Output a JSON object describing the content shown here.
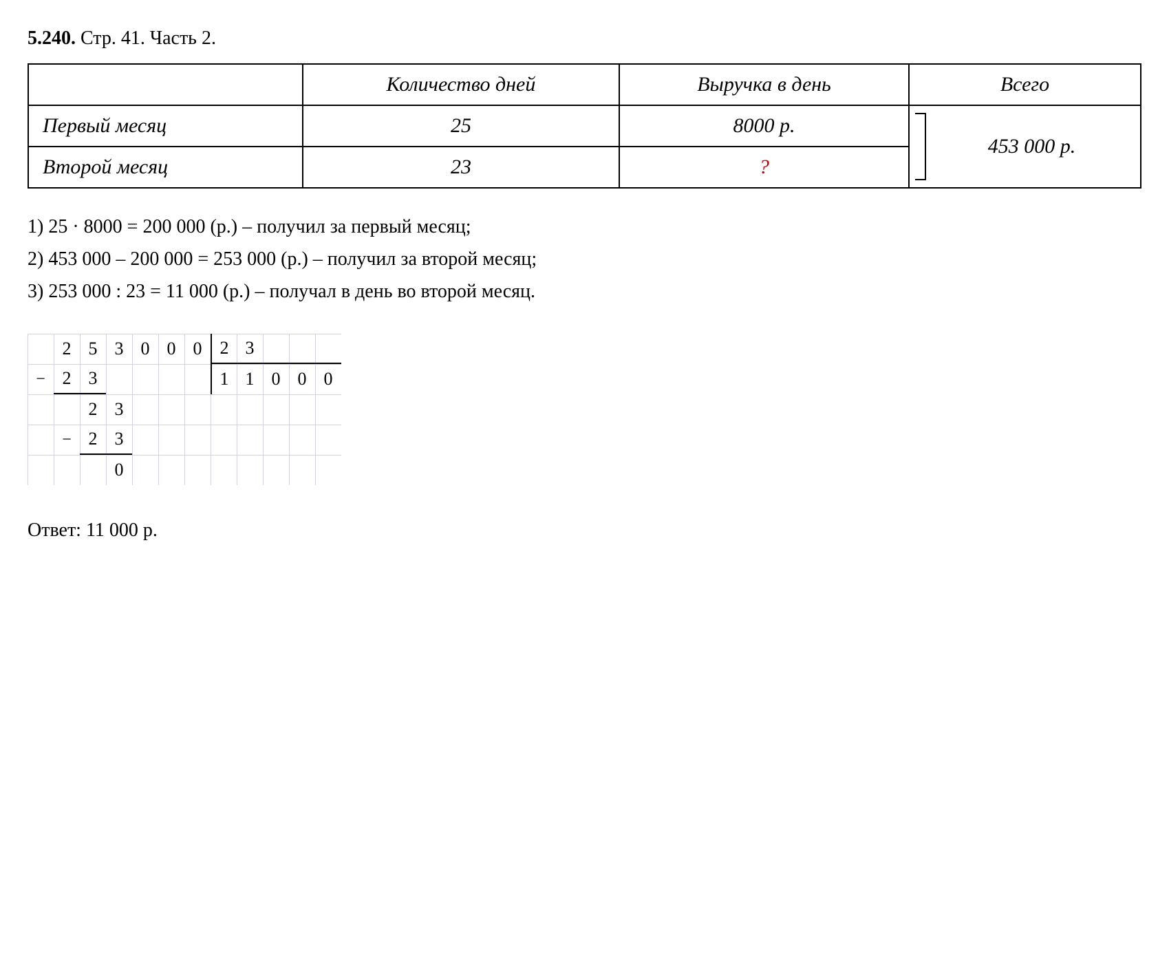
{
  "heading": {
    "number": "5.240.",
    "page": "Стр. 41.",
    "part": "Часть 2."
  },
  "table": {
    "headers": {
      "col1": "",
      "col2": "Количество дней",
      "col3": "Выручка в день",
      "col4": "Всего"
    },
    "rows": [
      {
        "label": "Первый месяц",
        "days": "25",
        "revenue": "8000 р.",
        "total": "453 000 р."
      },
      {
        "label": "Второй месяц",
        "days": "23",
        "revenue": "?",
        "total": ""
      }
    ]
  },
  "steps": [
    "1) 25 · 8000 = 200 000 (р.) – получил за первый месяц;",
    "2) 453 000 – 200 000 = 253 000 (р.) – получил за второй месяц;",
    "3) 253 000 : 23 = 11 000 (р.) – получал в день во второй месяц."
  ],
  "division": {
    "dividend": [
      "2",
      "5",
      "3",
      "0",
      "0",
      "0"
    ],
    "divisor": [
      "2",
      "3"
    ],
    "quotient": [
      "1",
      "1",
      "0",
      "0",
      "0"
    ],
    "row1": [
      "2",
      "3"
    ],
    "row2": [
      "2",
      "3"
    ],
    "row3": [
      "2",
      "3"
    ],
    "row4": [
      "0"
    ]
  },
  "answer": "Ответ: 11 000 р.",
  "colors": {
    "text": "#000000",
    "red": "#cc0000",
    "grid": "#d0d0e8",
    "bg": "#ffffff"
  }
}
